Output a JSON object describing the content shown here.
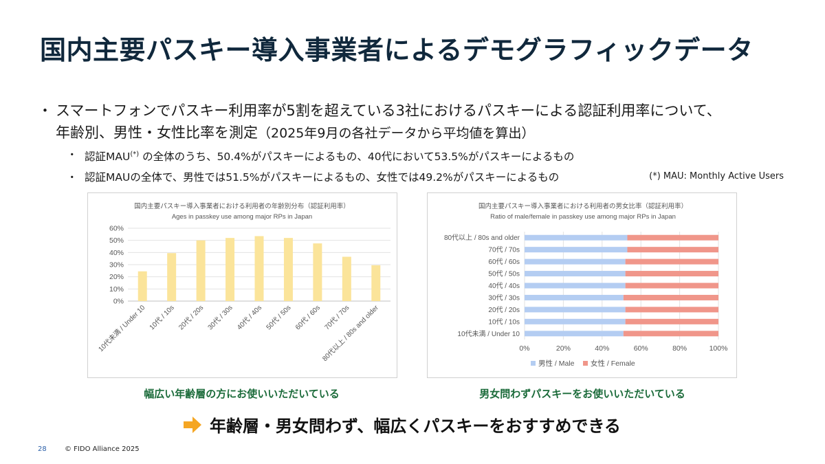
{
  "title": "国内主要パスキー導入事業者によるデモグラフィックデータ",
  "bullets": {
    "main_line1": "スマートフォンでパスキー利用率が5割を超えている3社におけるパスキーによる認証利用率について、",
    "main_line2": "年齢別、男性・女性比率を測定",
    "main_note": "（2025年9月の各社データから平均値を算出）",
    "sub1_a": "認証MAU",
    "sub1_sup": "(*)",
    "sub1_b": " の全体のうち、50.4%がパスキーによるもの、40代において53.5%がパスキーによるもの",
    "sub2": "認証MAUの全体で、男性では51.5%がパスキーによるもの、女性では49.2%がパスキーによるもの",
    "bullet_glyph": "・"
  },
  "footnote": "(*) MAU: Monthly Active Users",
  "chart_data": [
    {
      "type": "bar",
      "title": "国内主要パスキー導入事業者における利用者の年齢別分布（認証利用率）",
      "subtitle": "Ages in passkey use among major RPs in Japan",
      "categories": [
        "10代未満 / Under 10",
        "10代 / 10s",
        "20代 / 20s",
        "30代 / 30s",
        "40代 / 40s",
        "50代 / 50s",
        "60代 / 60s",
        "70代 / 70s",
        "80代以上 / 80s and older"
      ],
      "values": [
        24.5,
        39.5,
        50.0,
        52.0,
        53.5,
        52.0,
        47.5,
        36.5,
        29.5
      ],
      "yticks": [
        "0%",
        "10%",
        "20%",
        "30%",
        "40%",
        "50%",
        "60%"
      ],
      "ylim": [
        0,
        60
      ],
      "grid": true,
      "colors": {
        "bar": "#fbe49a"
      }
    },
    {
      "type": "bar",
      "orientation": "horizontal",
      "stacked": true,
      "title": "国内主要パスキー導入事業者における利用者の男女比率（認証利用率）",
      "subtitle": "Ratio of male/female in passkey use among major RPs in Japan",
      "categories": [
        "80代以上 / 80s and older",
        "70代 / 70s",
        "60代 / 60s",
        "50代 / 50s",
        "40代 / 40s",
        "30代 / 30s",
        "20代 / 20s",
        "10代 / 10s",
        "10代未満 / Under 10"
      ],
      "series": [
        {
          "name": "男性 / Male",
          "values": [
            53,
            53,
            52,
            52,
            52,
            51,
            52,
            52,
            51
          ],
          "color": "#b4cdf2"
        },
        {
          "name": "女性 / Female",
          "values": [
            47,
            47,
            48,
            48,
            48,
            49,
            48,
            48,
            49
          ],
          "color": "#f0968a"
        }
      ],
      "xticks": [
        "0%",
        "20%",
        "40%",
        "60%",
        "80%",
        "100%"
      ],
      "xlim": [
        0,
        100
      ],
      "grid": true,
      "legend": "bottom"
    }
  ],
  "captions": {
    "left": "幅広い年齢層の方にお使いいただいている",
    "right": "男女問わずパスキーをお使いいただいている"
  },
  "conclusion": "年齢層・男女問わず、幅広くパスキーをおすすめできる",
  "footer": {
    "page": "28",
    "copyright": "© FIDO Alliance 2025"
  },
  "colors": {
    "title": "#10283c",
    "caption": "#1b6b3a",
    "arrow": "#f5a623"
  }
}
